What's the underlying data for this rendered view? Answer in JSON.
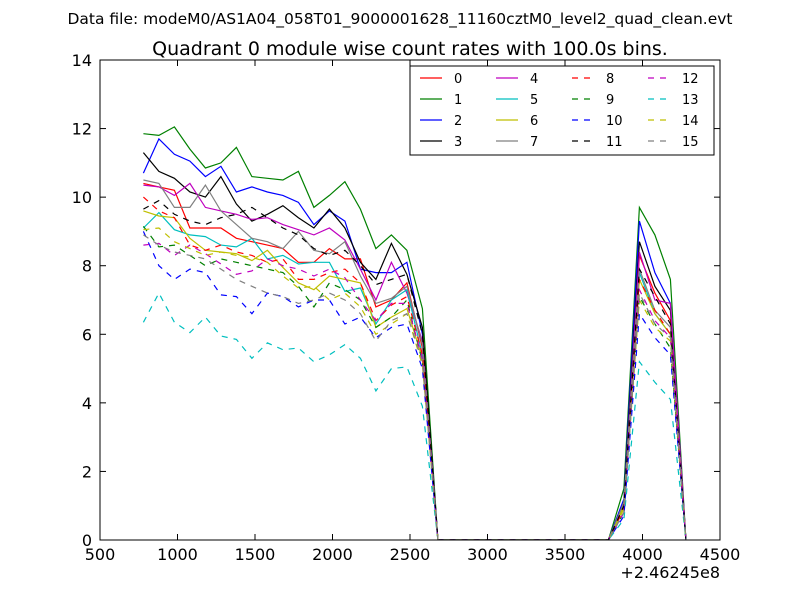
{
  "figure": {
    "suptitle": "Data file: modeM0/AS1A04_058T01_9000001628_11160cztM0_level2_quad_clean.evt",
    "offset_label": "+2.46245e8"
  },
  "chart_data": {
    "type": "line",
    "title": "Quadrant 0 module wise count rates with 100.0s bins.",
    "xlabel": "",
    "ylabel": "",
    "xlim": [
      500,
      4500
    ],
    "ylim": [
      0,
      14
    ],
    "x_offset": 246245000,
    "xticks": [
      500,
      1000,
      1500,
      2000,
      2500,
      3000,
      3500,
      4000,
      4500
    ],
    "yticks": [
      0,
      2,
      4,
      6,
      8,
      10,
      12,
      14
    ],
    "grid": false,
    "legend_position": "upper-right",
    "legend_columns": 4,
    "x": [
      780,
      880,
      980,
      1080,
      1180,
      1280,
      1380,
      1480,
      1580,
      1680,
      1780,
      1880,
      1980,
      2080,
      2180,
      2280,
      2380,
      2480,
      2580,
      2680,
      2780,
      2880,
      2980,
      3080,
      3180,
      3280,
      3380,
      3480,
      3580,
      3680,
      3780,
      3880,
      3980,
      4080,
      4180,
      4280
    ],
    "series": [
      {
        "name": "0",
        "color": "#ff0000",
        "style": "solid",
        "values": [
          10.4,
          10.3,
          10.2,
          9.1,
          9.1,
          9.1,
          8.8,
          8.7,
          8.6,
          8.5,
          8.1,
          8.1,
          8.5,
          8.2,
          8.2,
          6.8,
          7.0,
          7.5,
          5.6,
          0,
          0,
          0,
          0,
          0,
          0,
          0,
          0,
          0,
          0,
          0,
          0,
          1.0,
          8.3,
          7.2,
          6.4,
          0
        ]
      },
      {
        "name": "1",
        "color": "#008000",
        "style": "solid",
        "values": [
          11.85,
          11.8,
          12.05,
          11.4,
          10.85,
          11.0,
          11.45,
          10.6,
          10.55,
          10.5,
          10.75,
          9.7,
          10.05,
          10.45,
          9.65,
          8.5,
          8.9,
          8.45,
          6.75,
          0,
          0,
          0,
          0,
          0,
          0,
          0,
          0,
          0,
          0,
          0,
          0,
          1.5,
          9.7,
          8.9,
          7.6,
          0
        ]
      },
      {
        "name": "2",
        "color": "#0000ff",
        "style": "solid",
        "values": [
          10.7,
          11.7,
          11.25,
          11.05,
          10.6,
          10.9,
          10.15,
          10.3,
          10.15,
          10.05,
          9.85,
          9.2,
          9.6,
          9.3,
          7.9,
          7.8,
          7.8,
          8.1,
          6.0,
          0,
          0,
          0,
          0,
          0,
          0,
          0,
          0,
          0,
          0,
          0,
          0,
          1.2,
          9.3,
          7.8,
          6.9,
          0
        ]
      },
      {
        "name": "3",
        "color": "#000000",
        "style": "solid",
        "values": [
          11.3,
          10.75,
          10.55,
          10.15,
          10.0,
          10.6,
          9.8,
          9.3,
          9.5,
          9.75,
          9.4,
          9.1,
          9.65,
          9.1,
          8.1,
          7.6,
          8.65,
          7.75,
          6.2,
          0,
          0,
          0,
          0,
          0,
          0,
          0,
          0,
          0,
          0,
          0,
          0,
          1.1,
          8.7,
          7.4,
          6.7,
          0
        ]
      },
      {
        "name": "4",
        "color": "#bf00bf",
        "style": "solid",
        "values": [
          10.35,
          10.3,
          10.05,
          10.4,
          9.7,
          9.6,
          9.5,
          9.35,
          9.4,
          9.2,
          9.05,
          8.9,
          9.1,
          8.75,
          7.9,
          7.0,
          8.1,
          7.2,
          5.8,
          0,
          0,
          0,
          0,
          0,
          0,
          0,
          0,
          0,
          0,
          0,
          0,
          1.0,
          8.4,
          7.0,
          6.9,
          0
        ]
      },
      {
        "name": "5",
        "color": "#00bfbf",
        "style": "solid",
        "values": [
          9.1,
          9.55,
          9.05,
          8.9,
          8.85,
          8.6,
          8.55,
          8.8,
          8.2,
          8.3,
          8.05,
          8.1,
          8.1,
          7.25,
          7.35,
          6.3,
          7.0,
          7.3,
          5.4,
          0,
          0,
          0,
          0,
          0,
          0,
          0,
          0,
          0,
          0,
          0,
          0,
          1.0,
          7.8,
          6.6,
          6.0,
          0
        ]
      },
      {
        "name": "6",
        "color": "#bfbf00",
        "style": "solid",
        "values": [
          9.6,
          9.45,
          9.4,
          8.8,
          8.45,
          8.4,
          8.35,
          8.15,
          8.45,
          7.95,
          7.5,
          7.3,
          7.7,
          7.6,
          7.5,
          6.2,
          6.5,
          6.75,
          5.3,
          0,
          0,
          0,
          0,
          0,
          0,
          0,
          0,
          0,
          0,
          0,
          0,
          1.0,
          7.6,
          6.6,
          6.0,
          0
        ]
      },
      {
        "name": "7",
        "color": "#808080",
        "style": "solid",
        "values": [
          10.5,
          10.4,
          9.7,
          9.7,
          10.35,
          9.6,
          9.2,
          8.8,
          8.7,
          8.5,
          9.0,
          8.45,
          8.35,
          8.7,
          7.7,
          6.9,
          7.05,
          7.4,
          5.7,
          0,
          0,
          0,
          0,
          0,
          0,
          0,
          0,
          0,
          0,
          0,
          0,
          1.1,
          7.9,
          6.7,
          6.2,
          0
        ]
      },
      {
        "name": "8",
        "color": "#ff0000",
        "style": "dashed",
        "values": [
          10.0,
          9.6,
          9.4,
          8.6,
          8.45,
          8.6,
          8.4,
          8.3,
          8.1,
          8.2,
          7.6,
          7.6,
          7.8,
          7.9,
          7.5,
          6.4,
          6.85,
          7.1,
          5.4,
          0,
          0,
          0,
          0,
          0,
          0,
          0,
          0,
          0,
          0,
          0,
          0,
          0.9,
          7.6,
          6.7,
          6.0,
          0
        ]
      },
      {
        "name": "9",
        "color": "#008000",
        "style": "dashed",
        "values": [
          9.15,
          8.55,
          8.6,
          8.3,
          8.0,
          8.2,
          8.1,
          8.0,
          7.9,
          7.8,
          7.4,
          6.8,
          7.5,
          7.3,
          7.0,
          6.2,
          6.5,
          7.0,
          5.2,
          0,
          0,
          0,
          0,
          0,
          0,
          0,
          0,
          0,
          0,
          0,
          0,
          0.8,
          7.1,
          6.3,
          5.6,
          0
        ]
      },
      {
        "name": "10",
        "color": "#0000ff",
        "style": "dashed",
        "values": [
          9.0,
          8.0,
          7.6,
          7.9,
          7.8,
          7.15,
          7.1,
          6.6,
          7.2,
          7.1,
          6.8,
          7.0,
          7.0,
          6.3,
          6.5,
          5.9,
          6.2,
          6.3,
          5.0,
          0,
          0,
          0,
          0,
          0,
          0,
          0,
          0,
          0,
          0,
          0,
          0,
          0.7,
          6.6,
          5.9,
          5.4,
          0
        ]
      },
      {
        "name": "11",
        "color": "#000000",
        "style": "dashed",
        "values": [
          9.65,
          9.9,
          9.5,
          9.3,
          9.2,
          9.4,
          9.5,
          9.7,
          9.4,
          9.1,
          8.9,
          8.5,
          8.3,
          8.45,
          8.0,
          7.45,
          7.6,
          7.75,
          6.0,
          0,
          0,
          0,
          0,
          0,
          0,
          0,
          0,
          0,
          0,
          0,
          0,
          1.0,
          7.9,
          7.1,
          6.3,
          0
        ]
      },
      {
        "name": "12",
        "color": "#bf00bf",
        "style": "dashed",
        "values": [
          8.6,
          8.65,
          8.3,
          8.6,
          8.35,
          8.05,
          7.75,
          7.85,
          8.2,
          8.0,
          7.9,
          7.7,
          7.9,
          7.65,
          7.0,
          6.4,
          6.9,
          6.9,
          5.3,
          0,
          0,
          0,
          0,
          0,
          0,
          0,
          0,
          0,
          0,
          0,
          0,
          0.8,
          7.3,
          6.4,
          5.9,
          0
        ]
      },
      {
        "name": "13",
        "color": "#00bfbf",
        "style": "dashed",
        "values": [
          6.35,
          7.2,
          6.35,
          6.05,
          6.5,
          5.95,
          5.85,
          5.3,
          5.75,
          5.55,
          5.6,
          5.2,
          5.4,
          5.7,
          5.3,
          4.35,
          5.0,
          5.05,
          3.9,
          0,
          0,
          0,
          0,
          0,
          0,
          0,
          0,
          0,
          0,
          0,
          0,
          0.6,
          5.2,
          4.6,
          4.1,
          0
        ]
      },
      {
        "name": "14",
        "color": "#bfbf00",
        "style": "dashed",
        "values": [
          9.05,
          9.1,
          8.7,
          8.5,
          8.3,
          8.4,
          8.3,
          8.25,
          8.1,
          7.7,
          7.35,
          7.4,
          7.0,
          7.2,
          6.8,
          6.0,
          6.3,
          6.6,
          5.1,
          0,
          0,
          0,
          0,
          0,
          0,
          0,
          0,
          0,
          0,
          0,
          0,
          0.9,
          7.0,
          6.2,
          5.8,
          0
        ]
      },
      {
        "name": "15",
        "color": "#808080",
        "style": "dashed",
        "values": [
          8.9,
          8.6,
          8.4,
          8.3,
          8.2,
          7.9,
          7.6,
          7.4,
          7.2,
          7.1,
          6.9,
          7.0,
          7.2,
          7.0,
          6.6,
          5.8,
          6.4,
          6.6,
          5.2,
          0,
          0,
          0,
          0,
          0,
          0,
          0,
          0,
          0,
          0,
          0,
          0,
          0.8,
          7.2,
          6.3,
          5.9,
          0
        ]
      }
    ]
  }
}
